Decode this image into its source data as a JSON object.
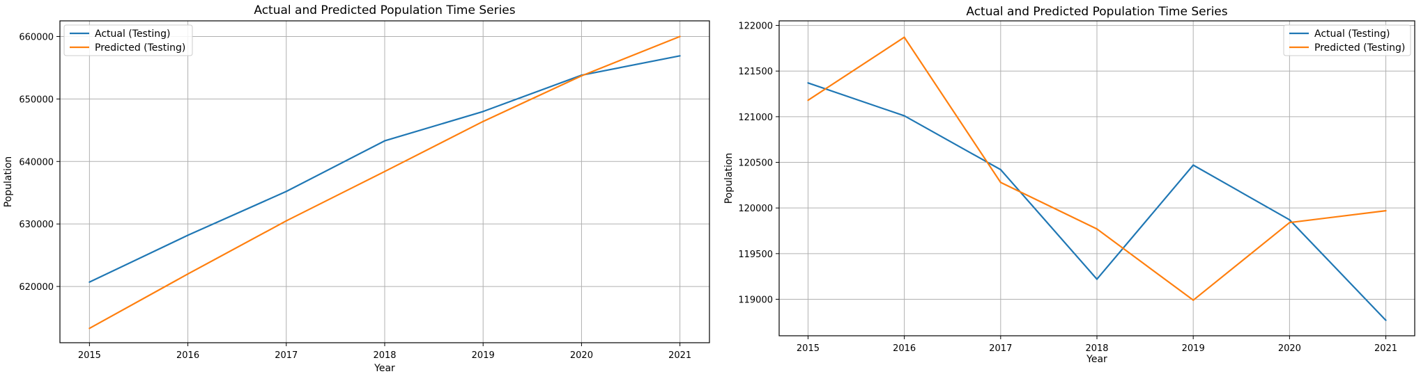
{
  "chart_data": [
    {
      "type": "line",
      "title": "Actual and Predicted Population Time Series",
      "xlabel": "Year",
      "ylabel": "Population",
      "x": [
        2015,
        2016,
        2017,
        2018,
        2019,
        2020,
        2021
      ],
      "xlim": [
        2014.7,
        2021.3
      ],
      "ylim": [
        611000,
        662500
      ],
      "yticks": [
        620000,
        630000,
        640000,
        650000,
        660000
      ],
      "grid": true,
      "legend": "top-left",
      "series": [
        {
          "name": "Actual (Testing)",
          "color": "#1f77b4",
          "values": [
            620700,
            628200,
            635200,
            643300,
            648000,
            653800,
            656900
          ]
        },
        {
          "name": "Predicted (Testing)",
          "color": "#ff7f0e",
          "values": [
            613300,
            622000,
            630500,
            638400,
            646400,
            653700,
            660000
          ]
        }
      ]
    },
    {
      "type": "line",
      "title": "Actual and Predicted Population Time Series",
      "xlabel": "Year",
      "ylabel": "Population",
      "x": [
        2015,
        2016,
        2017,
        2018,
        2019,
        2020,
        2021
      ],
      "xlim": [
        2014.7,
        2021.3
      ],
      "ylim": [
        118600,
        122050
      ],
      "yticks": [
        119000,
        119500,
        120000,
        120500,
        121000,
        121500,
        122000
      ],
      "grid": true,
      "legend": "top-right",
      "series": [
        {
          "name": "Actual (Testing)",
          "color": "#1f77b4",
          "values": [
            121370,
            121010,
            120420,
            119220,
            120470,
            119870,
            118770
          ]
        },
        {
          "name": "Predicted (Testing)",
          "color": "#ff7f0e",
          "values": [
            121180,
            121870,
            120280,
            119770,
            118990,
            119840,
            119970
          ]
        }
      ]
    }
  ]
}
